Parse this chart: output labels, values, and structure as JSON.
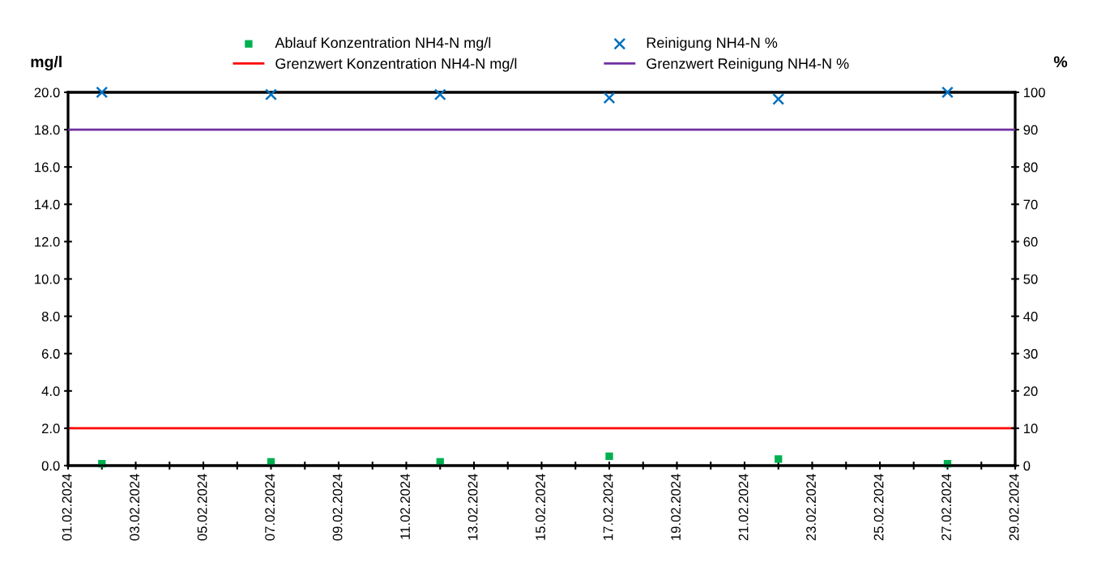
{
  "chart_data": {
    "type": "scatter",
    "x": [
      "2024-02-02",
      "2024-02-07",
      "2024-02-12",
      "2024-02-17",
      "2024-02-22",
      "2024-02-27"
    ],
    "series": [
      {
        "name": "Ablauf Konzentration NH4-N mg/l",
        "color": "#00b050",
        "marker": "square",
        "values": [
          0.1,
          0.2,
          0.2,
          0.5,
          0.35,
          0.1
        ]
      },
      {
        "name": "Reinigung NH4-N %",
        "color": "#0070c0",
        "marker": "cross",
        "axis": "y2",
        "values": [
          100,
          99.4,
          99.4,
          98.5,
          98.2,
          100
        ]
      }
    ],
    "ref_lines": [
      {
        "axis": "y",
        "value": 2,
        "label": "Grenzwert Konzentration NH4-N mg/l",
        "color": "#ff0000",
        "line_style": "solid"
      },
      {
        "axis": "y2",
        "value": 90,
        "label": "Grenzwert Reinigung NH4-N %",
        "color": "#7030a0",
        "line_style": "solid"
      }
    ],
    "ylabel": "mg/l",
    "y2label": "%",
    "xlim": [
      "2024-02-01",
      "2024-02-29"
    ],
    "xticks": [
      {
        "value": "2024-02-01",
        "label": "01.02.2024"
      },
      {
        "value": "2024-02-02",
        "label": null
      },
      {
        "value": "2024-02-03",
        "label": "03.02.2024"
      },
      {
        "value": "2024-02-04",
        "label": null
      },
      {
        "value": "2024-02-05",
        "label": "05.02.2024"
      },
      {
        "value": "2024-02-06",
        "label": null
      },
      {
        "value": "2024-02-07",
        "label": "07.02.2024"
      },
      {
        "value": "2024-02-08",
        "label": null
      },
      {
        "value": "2024-02-09",
        "label": "09.02.2024"
      },
      {
        "value": "2024-02-10",
        "label": null
      },
      {
        "value": "2024-02-11",
        "label": "11.02.2024"
      },
      {
        "value": "2024-02-12",
        "label": null
      },
      {
        "value": "2024-02-13",
        "label": "13.02.2024"
      },
      {
        "value": "2024-02-14",
        "label": null
      },
      {
        "value": "2024-02-15",
        "label": "15.02.2024"
      },
      {
        "value": "2024-02-16",
        "label": null
      },
      {
        "value": "2024-02-17",
        "label": "17.02.2024"
      },
      {
        "value": "2024-02-18",
        "label": null
      },
      {
        "value": "2024-02-19",
        "label": "19.02.2024"
      },
      {
        "value": "2024-02-20",
        "label": null
      },
      {
        "value": "2024-02-21",
        "label": "21.02.2024"
      },
      {
        "value": "2024-02-22",
        "label": null
      },
      {
        "value": "2024-02-23",
        "label": "23.02.2024"
      },
      {
        "value": "2024-02-24",
        "label": null
      },
      {
        "value": "2024-02-25",
        "label": "25.02.2024"
      },
      {
        "value": "2024-02-26",
        "label": null
      },
      {
        "value": "2024-02-27",
        "label": "27.02.2024"
      },
      {
        "value": "2024-02-28",
        "label": null
      },
      {
        "value": "2024-02-29",
        "label": "29.02.2024"
      }
    ],
    "ylim": [
      0,
      20
    ],
    "yticks": [
      {
        "value": 0,
        "label": "0.0"
      },
      {
        "value": 2,
        "label": "2.0"
      },
      {
        "value": 4,
        "label": "4.0"
      },
      {
        "value": 6,
        "label": "6.0"
      },
      {
        "value": 8,
        "label": "8.0"
      },
      {
        "value": 10,
        "label": "10.0"
      },
      {
        "value": 12,
        "label": "12.0"
      },
      {
        "value": 14,
        "label": "14.0"
      },
      {
        "value": 16,
        "label": "16.0"
      },
      {
        "value": 18,
        "label": "18.0"
      },
      {
        "value": 20,
        "label": "20.0"
      }
    ],
    "y2lim": [
      0,
      100
    ],
    "y2ticks": [
      0,
      10,
      20,
      30,
      40,
      50,
      60,
      70,
      80,
      90,
      100
    ],
    "grid": false,
    "legend": "top"
  }
}
